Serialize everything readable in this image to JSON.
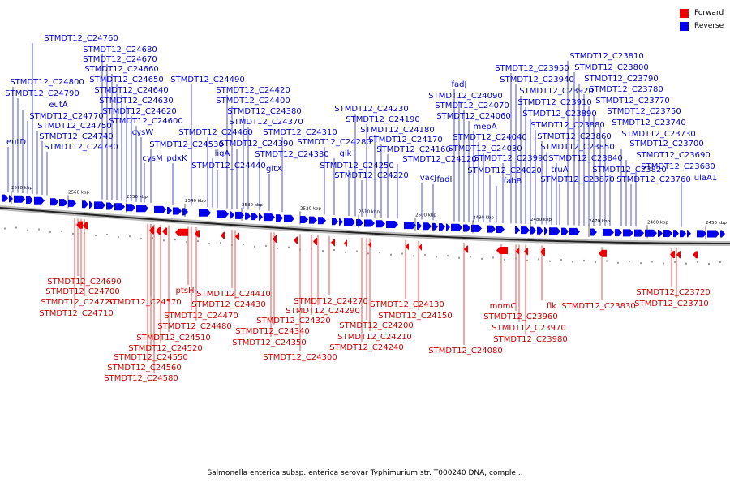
{
  "legend": {
    "forward_label": "Forward",
    "reverse_label": "Reverse",
    "forward_color": "#ee0000",
    "reverse_color": "#0000ee"
  },
  "caption": "Salmonella enterica subsp. enterica serovar Typhimurium str. T000240 DNA, comple...",
  "scale_labels": [
    "2570 kbp",
    "2560 kbp",
    "2550 kbp",
    "2540 kbp",
    "2530 kbp",
    "2520 kbp",
    "2510 kbp",
    "2500 kbp",
    "2490 kbp",
    "2480 kbp",
    "2470 kbp",
    "2460 kbp",
    "2450 kbp"
  ],
  "reverse_genes": [
    "eutD",
    "STMDT12_C24800",
    "STMDT12_C24790",
    "eutA",
    "STMDT12_C24770",
    "STMDT12_C24760",
    "STMDT12_C24750",
    "STMDT12_C24740",
    "STMDT12_C24730",
    "STMDT12_C24680",
    "STMDT12_C24670",
    "STMDT12_C24660",
    "STMDT12_C24650",
    "STMDT12_C24640",
    "STMDT12_C24630",
    "STMDT12_C24620",
    "STMDT12_C24600",
    "cysW",
    "cysM",
    "STMDT12_C24530",
    "pdxK",
    "STMDT12_C24490",
    "STMDT12_C24460",
    "ligA",
    "STMDT12_C24440",
    "STMDT12_C24420",
    "STMDT12_C24400",
    "STMDT12_C24390",
    "STMDT12_C24380",
    "STMDT12_C24370",
    "STMDT12_C24330",
    "gltX",
    "STMDT12_C24310",
    "STMDT12_C24280",
    "glk",
    "STMDT12_C24250",
    "STMDT12_C24230",
    "STMDT12_C24220",
    "STMDT12_C24190",
    "STMDT12_C24180",
    "STMDT12_C24170",
    "STMDT12_C24160",
    "STMDT12_C24120",
    "vacJ",
    "fadI",
    "fadJ",
    "STMDT12_C24090",
    "STMDT12_C24070",
    "STMDT12_C24060",
    "mepA",
    "STMDT12_C24040",
    "STMDT12_C24030",
    "STMDT12_C24020",
    "fabB",
    "STMDT12_C23990",
    "STMDT12_C23950",
    "STMDT12_C23940",
    "STMDT12_C23920",
    "STMDT12_C23910",
    "STMDT12_C23890",
    "STMDT12_C23880",
    "STMDT12_C23860",
    "STMDT12_C23850",
    "truA",
    "STMDT12_C23840",
    "STMDT12_C23870",
    "STMDT12_C23810",
    "STMDT12_C23800",
    "STMDT12_C23790",
    "STMDT12_C23780",
    "STMDT12_C23770",
    "STMDT12_C23750",
    "STMDT12_C23740",
    "STMDT12_C23730",
    "STMDT12_C23820",
    "STMDT12_C23700",
    "STMDT12_C23690",
    "STMDT12_C23760",
    "STMDT12_C23680",
    "ulaA1"
  ],
  "forward_genes": [
    "STMDT12_C24690",
    "STMDT12_C24700",
    "STMDT12_C24720",
    "STMDT12_C24710",
    "STMDT12_C24570",
    "ptsH",
    "STMDT12_C24470",
    "STMDT12_C24480",
    "STMDT12_C24510",
    "STMDT12_C24520",
    "STMDT12_C24550",
    "STMDT12_C24560",
    "STMDT12_C24580",
    "STMDT12_C24410",
    "STMDT12_C24430",
    "STMDT12_C24270",
    "STMDT12_C24290",
    "STMDT12_C24320",
    "STMDT12_C24340",
    "STMDT12_C24350",
    "STMDT12_C24300",
    "STMDT12_C24130",
    "STMDT12_C24150",
    "STMDT12_C24200",
    "STMDT12_C24210",
    "STMDT12_C24240",
    "STMDT12_C24080",
    "mnmC",
    "STMDT12_C23960",
    "STMDT12_C23970",
    "STMDT12_C23980",
    "flk",
    "STMDT12_C23830",
    "STMDT12_C23720",
    "STMDT12_C23710"
  ]
}
